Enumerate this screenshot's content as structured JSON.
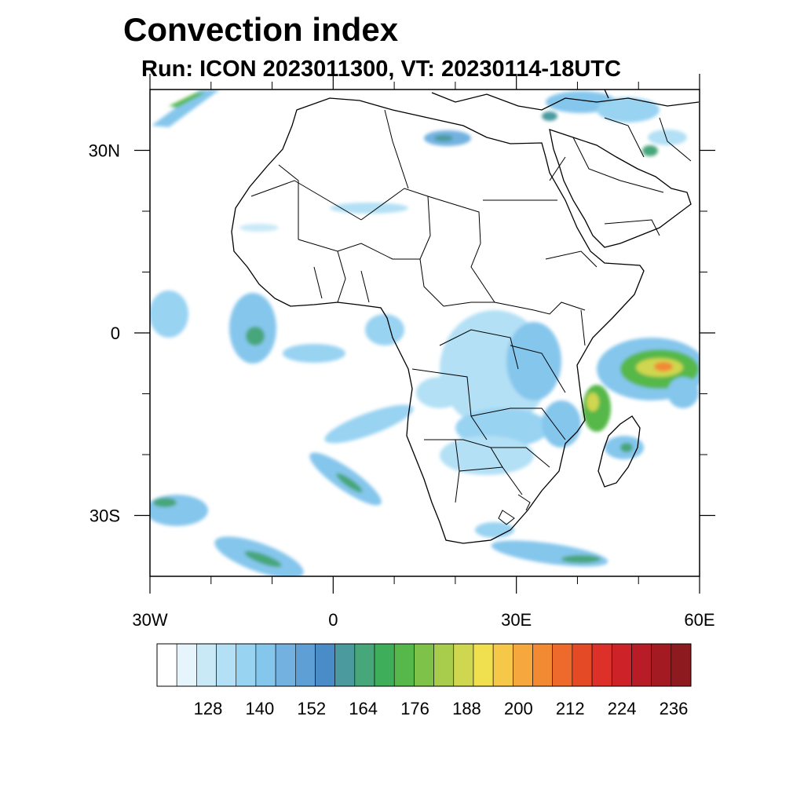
{
  "title": "Convection index",
  "subtitle": "Run: ICON 2023011300,  VT: 20230114-18UTC",
  "map": {
    "lon_range": [
      -30,
      60
    ],
    "lat_range": [
      -40,
      40
    ],
    "lat_labels": [
      {
        "lat": 30,
        "label": "30N"
      },
      {
        "lat": 0,
        "label": "0"
      },
      {
        "lat": -30,
        "label": "30S"
      }
    ],
    "lon_labels": [
      {
        "lon": -30,
        "label": "30W"
      },
      {
        "lon": 0,
        "label": "0"
      },
      {
        "lon": 30,
        "label": "30E"
      },
      {
        "lon": 60,
        "label": "60E"
      }
    ],
    "minor_lon_ticks": [
      -20,
      -10,
      10,
      20,
      40,
      50
    ],
    "minor_lat_ticks": [
      20,
      10,
      -10,
      -20
    ]
  },
  "colorbar": {
    "colors": [
      "#ffffff",
      "#e6f5fc",
      "#c9e9f7",
      "#b3e0f5",
      "#99d3f2",
      "#85c6ec",
      "#73b2e0",
      "#5e9fd6",
      "#4a8cc8",
      "#4a9a9e",
      "#47a67a",
      "#3fae5a",
      "#56b84a",
      "#7fc24a",
      "#a8cc4c",
      "#cfd64f",
      "#f0e050",
      "#f6c84a",
      "#f6a83e",
      "#f28a34",
      "#ee6a2c",
      "#e54a26",
      "#dc3028",
      "#cc2228",
      "#b81c26",
      "#a31a22",
      "#8c1a1e"
    ],
    "labels": [
      "128",
      "140",
      "152",
      "164",
      "176",
      "188",
      "200",
      "212",
      "224",
      "236"
    ]
  }
}
